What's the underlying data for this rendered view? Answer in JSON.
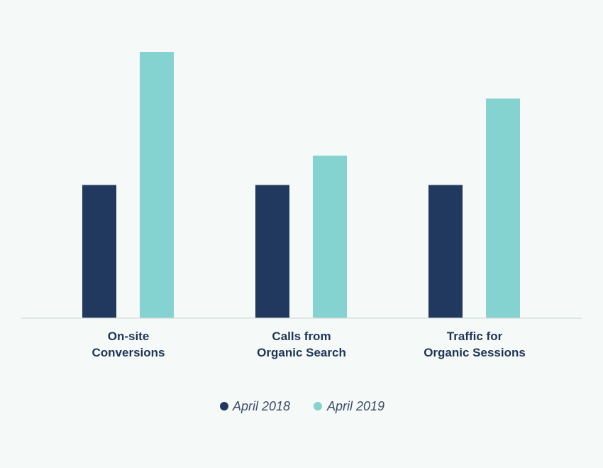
{
  "colors": {
    "background": "#f5f9f8",
    "baseline": "#d5dcdc",
    "label": "#1f3556",
    "legend_text": "#3c4d66"
  },
  "chart_data": {
    "type": "bar",
    "categories": [
      [
        "On-site",
        "Conversions"
      ],
      [
        "Calls from",
        "Organic Search"
      ],
      [
        "Traffic for",
        "Organic Sessions"
      ]
    ],
    "series": [
      {
        "name": "April 2018",
        "color": "#21385f",
        "values": [
          1.0,
          1.0,
          1.0
        ]
      },
      {
        "name": "April 2019",
        "color": "#85d3d0",
        "values": [
          2.0,
          1.22,
          1.65
        ]
      }
    ],
    "ylim": [
      0,
      2.0
    ],
    "grid": false,
    "legend_position": "bottom-center",
    "title": "",
    "xlabel": "",
    "ylabel": ""
  }
}
